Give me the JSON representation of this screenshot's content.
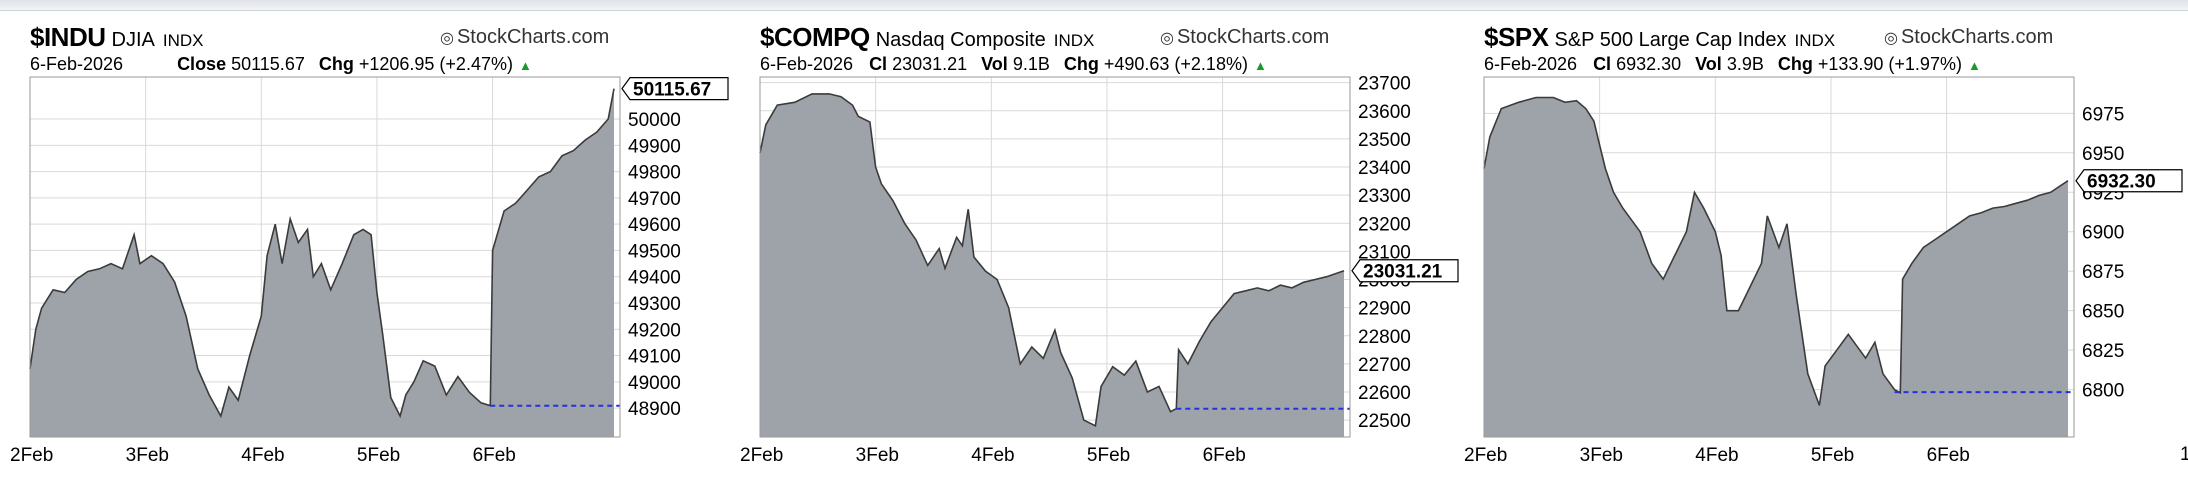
{
  "brand": "StockCharts.com",
  "stray_tick": "1",
  "chart_data": [
    {
      "type": "area",
      "symbol": "$INDU",
      "name": "DJIA",
      "exchange": "INDX",
      "date": "6-Feb-2026",
      "close_label": "Close",
      "close": "50115.67",
      "vol_label": "",
      "vol": "",
      "chg_label": "Chg",
      "chg": "+1206.95 (+2.47%)",
      "last_value": 50115.67,
      "last_label": "50115.67",
      "ref_value": 48908.72,
      "ylim": [
        48790,
        50160
      ],
      "yticks": [
        48900,
        49000,
        49100,
        49200,
        49300,
        49400,
        49500,
        49600,
        49700,
        49800,
        49900,
        50000
      ],
      "xticks": [
        {
          "label": "2Feb",
          "t": 0
        },
        {
          "label": "3Feb",
          "t": 1
        },
        {
          "label": "4Feb",
          "t": 2
        },
        {
          "label": "5Feb",
          "t": 3
        },
        {
          "label": "6Feb",
          "t": 4
        }
      ],
      "x_end": 5.05,
      "points": [
        [
          0,
          49050
        ],
        [
          0.05,
          49200
        ],
        [
          0.1,
          49280
        ],
        [
          0.2,
          49350
        ],
        [
          0.3,
          49340
        ],
        [
          0.4,
          49390
        ],
        [
          0.5,
          49420
        ],
        [
          0.6,
          49430
        ],
        [
          0.7,
          49450
        ],
        [
          0.8,
          49430
        ],
        [
          0.9,
          49560
        ],
        [
          0.95,
          49450
        ],
        [
          1.05,
          49480
        ],
        [
          1.15,
          49450
        ],
        [
          1.25,
          49380
        ],
        [
          1.35,
          49250
        ],
        [
          1.45,
          49050
        ],
        [
          1.55,
          48950
        ],
        [
          1.65,
          48870
        ],
        [
          1.72,
          48980
        ],
        [
          1.8,
          48930
        ],
        [
          1.9,
          49100
        ],
        [
          2.0,
          49250
        ],
        [
          2.05,
          49480
        ],
        [
          2.12,
          49600
        ],
        [
          2.18,
          49450
        ],
        [
          2.25,
          49620
        ],
        [
          2.32,
          49530
        ],
        [
          2.4,
          49580
        ],
        [
          2.45,
          49400
        ],
        [
          2.52,
          49450
        ],
        [
          2.6,
          49350
        ],
        [
          2.7,
          49450
        ],
        [
          2.8,
          49560
        ],
        [
          2.88,
          49580
        ],
        [
          2.95,
          49560
        ],
        [
          3.0,
          49340
        ],
        [
          3.05,
          49180
        ],
        [
          3.12,
          48940
        ],
        [
          3.2,
          48870
        ],
        [
          3.25,
          48950
        ],
        [
          3.32,
          49000
        ],
        [
          3.4,
          49080
        ],
        [
          3.5,
          49060
        ],
        [
          3.6,
          48950
        ],
        [
          3.7,
          49020
        ],
        [
          3.8,
          48960
        ],
        [
          3.9,
          48920
        ],
        [
          3.98,
          48909
        ],
        [
          4.0,
          49500
        ],
        [
          4.1,
          49650
        ],
        [
          4.2,
          49680
        ],
        [
          4.3,
          49730
        ],
        [
          4.4,
          49780
        ],
        [
          4.5,
          49800
        ],
        [
          4.6,
          49860
        ],
        [
          4.7,
          49880
        ],
        [
          4.8,
          49920
        ],
        [
          4.9,
          49950
        ],
        [
          5.0,
          50000
        ],
        [
          5.05,
          50115.67
        ]
      ]
    },
    {
      "type": "area",
      "symbol": "$COMPQ",
      "name": "Nasdaq Composite",
      "exchange": "INDX",
      "date": "6-Feb-2026",
      "close_label": "Cl",
      "close": "23031.21",
      "vol_label": "Vol",
      "vol": "9.1B",
      "chg_label": "Chg",
      "chg": "+490.63 (+2.18%)",
      "last_value": 23031.21,
      "last_label": "23031.21",
      "ref_value": 22540.58,
      "ylim": [
        22440,
        23720
      ],
      "yticks": [
        22500,
        22600,
        22700,
        22800,
        22900,
        23000,
        23100,
        23200,
        23300,
        23400,
        23500,
        23600,
        23700
      ],
      "xticks": [
        {
          "label": "2Feb",
          "t": 0
        },
        {
          "label": "3Feb",
          "t": 1
        },
        {
          "label": "4Feb",
          "t": 2
        },
        {
          "label": "5Feb",
          "t": 3
        },
        {
          "label": "6Feb",
          "t": 4
        }
      ],
      "x_end": 5.05,
      "points": [
        [
          0,
          23450
        ],
        [
          0.05,
          23550
        ],
        [
          0.15,
          23620
        ],
        [
          0.3,
          23630
        ],
        [
          0.45,
          23660
        ],
        [
          0.6,
          23660
        ],
        [
          0.7,
          23650
        ],
        [
          0.8,
          23620
        ],
        [
          0.85,
          23580
        ],
        [
          0.95,
          23560
        ],
        [
          1.0,
          23400
        ],
        [
          1.05,
          23340
        ],
        [
          1.15,
          23280
        ],
        [
          1.25,
          23200
        ],
        [
          1.35,
          23140
        ],
        [
          1.45,
          23050
        ],
        [
          1.55,
          23110
        ],
        [
          1.6,
          23040
        ],
        [
          1.7,
          23150
        ],
        [
          1.75,
          23120
        ],
        [
          1.8,
          23250
        ],
        [
          1.85,
          23080
        ],
        [
          1.95,
          23030
        ],
        [
          2.05,
          23000
        ],
        [
          2.15,
          22900
        ],
        [
          2.25,
          22700
        ],
        [
          2.35,
          22760
        ],
        [
          2.45,
          22720
        ],
        [
          2.55,
          22820
        ],
        [
          2.6,
          22740
        ],
        [
          2.7,
          22650
        ],
        [
          2.8,
          22500
        ],
        [
          2.9,
          22480
        ],
        [
          2.95,
          22620
        ],
        [
          3.05,
          22690
        ],
        [
          3.15,
          22660
        ],
        [
          3.25,
          22710
        ],
        [
          3.35,
          22600
        ],
        [
          3.45,
          22620
        ],
        [
          3.55,
          22530
        ],
        [
          3.6,
          22541
        ],
        [
          3.62,
          22750
        ],
        [
          3.7,
          22700
        ],
        [
          3.8,
          22780
        ],
        [
          3.9,
          22850
        ],
        [
          4.0,
          22900
        ],
        [
          4.1,
          22950
        ],
        [
          4.2,
          22960
        ],
        [
          4.3,
          22970
        ],
        [
          4.4,
          22960
        ],
        [
          4.5,
          22980
        ],
        [
          4.6,
          22970
        ],
        [
          4.7,
          22990
        ],
        [
          4.8,
          23000
        ],
        [
          4.9,
          23010
        ],
        [
          5.05,
          23031.21
        ]
      ]
    },
    {
      "type": "area",
      "symbol": "$SPX",
      "name": "S&P 500 Large Cap Index",
      "exchange": "INDX",
      "date": "6-Feb-2026",
      "close_label": "Cl",
      "close": "6932.30",
      "vol_label": "Vol",
      "vol": "3.9B",
      "chg_label": "Chg",
      "chg": "+133.90 (+1.97%)",
      "last_value": 6932.3,
      "last_label": "6932.30",
      "ref_value": 6798.4,
      "ylim": [
        6770,
        6998
      ],
      "yticks": [
        6800,
        6825,
        6850,
        6875,
        6900,
        6925,
        6950,
        6975
      ],
      "xticks": [
        {
          "label": "2Feb",
          "t": 0
        },
        {
          "label": "3Feb",
          "t": 1
        },
        {
          "label": "4Feb",
          "t": 2
        },
        {
          "label": "5Feb",
          "t": 3
        },
        {
          "label": "6Feb",
          "t": 4
        }
      ],
      "x_end": 5.05,
      "points": [
        [
          0,
          6940
        ],
        [
          0.05,
          6960
        ],
        [
          0.15,
          6978
        ],
        [
          0.3,
          6982
        ],
        [
          0.45,
          6985
        ],
        [
          0.6,
          6985
        ],
        [
          0.7,
          6982
        ],
        [
          0.8,
          6983
        ],
        [
          0.88,
          6978
        ],
        [
          0.95,
          6970
        ],
        [
          1.0,
          6955
        ],
        [
          1.05,
          6940
        ],
        [
          1.12,
          6925
        ],
        [
          1.2,
          6915
        ],
        [
          1.35,
          6900
        ],
        [
          1.45,
          6880
        ],
        [
          1.55,
          6870
        ],
        [
          1.65,
          6885
        ],
        [
          1.75,
          6900
        ],
        [
          1.82,
          6925
        ],
        [
          1.9,
          6915
        ],
        [
          2.0,
          6900
        ],
        [
          2.05,
          6885
        ],
        [
          2.1,
          6850
        ],
        [
          2.2,
          6850
        ],
        [
          2.3,
          6865
        ],
        [
          2.4,
          6880
        ],
        [
          2.45,
          6910
        ],
        [
          2.55,
          6890
        ],
        [
          2.62,
          6905
        ],
        [
          2.7,
          6860
        ],
        [
          2.8,
          6810
        ],
        [
          2.9,
          6790
        ],
        [
          2.95,
          6815
        ],
        [
          3.05,
          6825
        ],
        [
          3.15,
          6835
        ],
        [
          3.2,
          6830
        ],
        [
          3.3,
          6820
        ],
        [
          3.38,
          6830
        ],
        [
          3.45,
          6810
        ],
        [
          3.55,
          6800
        ],
        [
          3.6,
          6798
        ],
        [
          3.62,
          6870
        ],
        [
          3.7,
          6880
        ],
        [
          3.8,
          6890
        ],
        [
          3.9,
          6895
        ],
        [
          4.0,
          6900
        ],
        [
          4.1,
          6905
        ],
        [
          4.2,
          6910
        ],
        [
          4.3,
          6912
        ],
        [
          4.4,
          6915
        ],
        [
          4.5,
          6916
        ],
        [
          4.6,
          6918
        ],
        [
          4.7,
          6920
        ],
        [
          4.8,
          6923
        ],
        [
          4.9,
          6925
        ],
        [
          5.05,
          6932.3
        ]
      ]
    }
  ]
}
